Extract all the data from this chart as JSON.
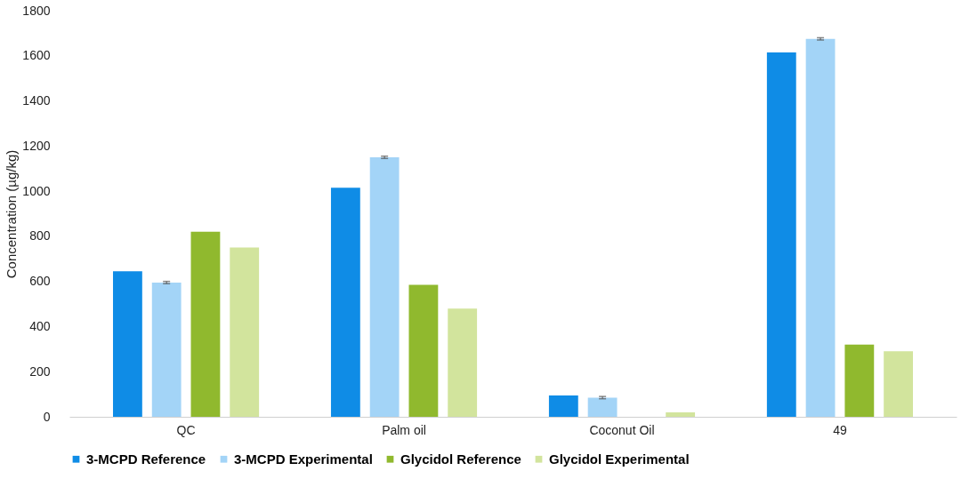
{
  "chart_data": {
    "type": "bar",
    "ylabel": "Concentration (µg/kg)",
    "categories": [
      "QC",
      "Palm oil",
      "Coconut Oil",
      "49"
    ],
    "series": [
      {
        "name": "3-MCPD Reference",
        "color": "#0f8ce6",
        "values": [
          645,
          1015,
          95,
          1615
        ]
      },
      {
        "name": "3-MCPD Experimental",
        "color": "#a3d4f7",
        "values": [
          595,
          1150,
          85,
          1675
        ],
        "errors": [
          5,
          5,
          5,
          5
        ]
      },
      {
        "name": "Glycidol Reference",
        "color": "#90b92e",
        "values": [
          820,
          585,
          0,
          320
        ]
      },
      {
        "name": "Glycidol Experimental",
        "color": "#d2e49d",
        "values": [
          750,
          480,
          20,
          290
        ]
      }
    ],
    "ylim": [
      0,
      1800
    ],
    "yticks": [
      0,
      200,
      400,
      600,
      800,
      1000,
      1200,
      1400,
      1600,
      1800
    ],
    "grid": false,
    "legend": "bottom"
  }
}
